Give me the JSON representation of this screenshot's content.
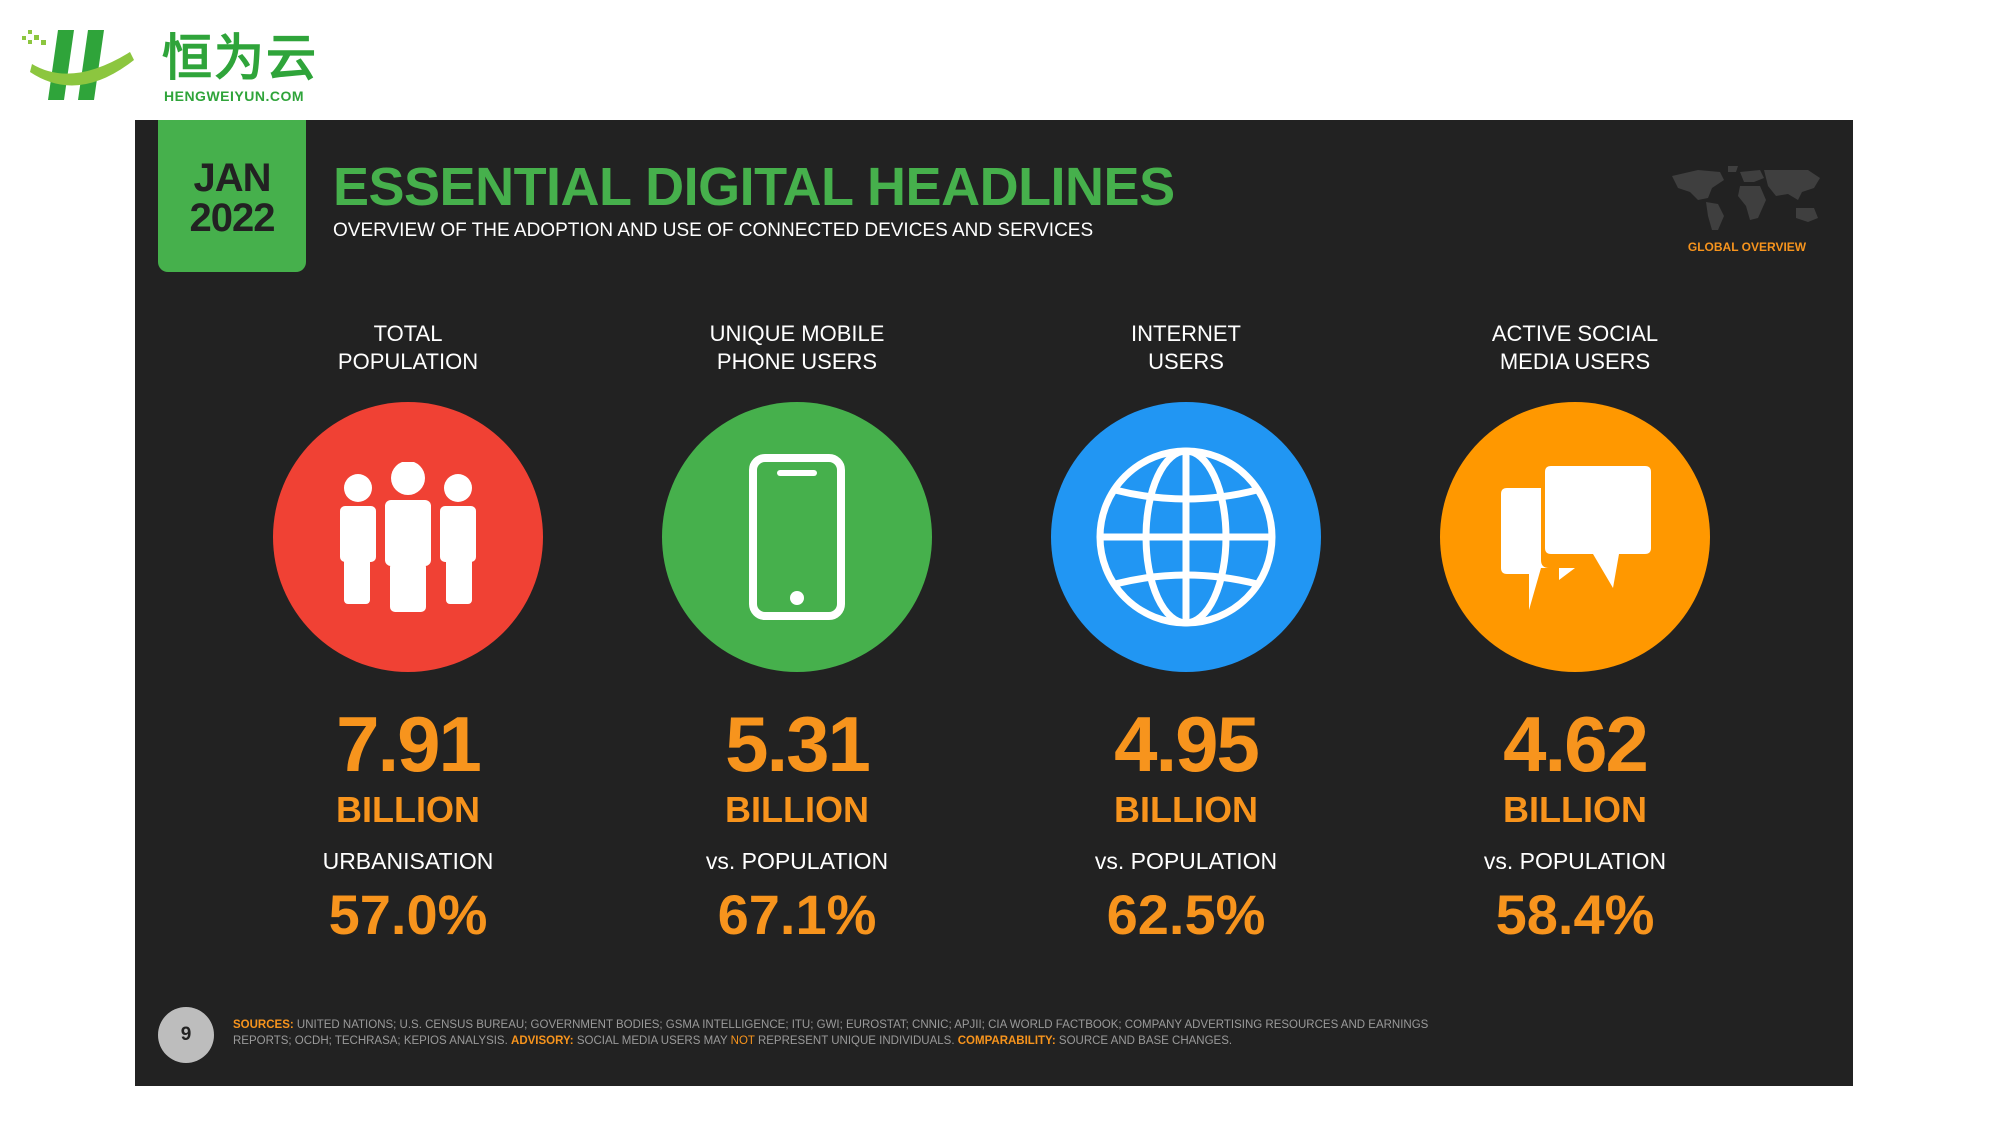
{
  "logo": {
    "name": "恒为云",
    "domain": "HENGWEIYUN.COM"
  },
  "header": {
    "month": "JAN",
    "year": "2022",
    "title": "ESSENTIAL DIGITAL HEADLINES",
    "subtitle": "OVERVIEW OF THE ADOPTION AND USE OF CONNECTED DEVICES AND SERVICES",
    "overview_label": "GLOBAL OVERVIEW"
  },
  "stats": [
    {
      "label_line1": "TOTAL",
      "label_line2": "POPULATION",
      "icon": "people-icon",
      "color": "#f04134",
      "value": "7.91",
      "unit": "BILLION",
      "sublabel": "URBANISATION",
      "percent": "57.0%"
    },
    {
      "label_line1": "UNIQUE MOBILE",
      "label_line2": "PHONE USERS",
      "icon": "mobile-phone-icon",
      "color": "#46b04c",
      "value": "5.31",
      "unit": "BILLION",
      "sublabel": "vs. POPULATION",
      "percent": "67.1%"
    },
    {
      "label_line1": "INTERNET",
      "label_line2": "USERS",
      "icon": "globe-icon",
      "color": "#2196f3",
      "value": "4.95",
      "unit": "BILLION",
      "sublabel": "vs. POPULATION",
      "percent": "62.5%"
    },
    {
      "label_line1": "ACTIVE SOCIAL",
      "label_line2": "MEDIA USERS",
      "icon": "chat-bubbles-icon",
      "color": "#ff9800",
      "value": "4.62",
      "unit": "BILLION",
      "sublabel": "vs. POPULATION",
      "percent": "58.4%"
    }
  ],
  "footer": {
    "page_number": "9",
    "sources_label": "SOURCES:",
    "sources_text": "UNITED NATIONS; U.S. CENSUS BUREAU; GOVERNMENT BODIES; GSMA INTELLIGENCE; ITU; GWI; EUROSTAT; CNNIC; APJII; CIA WORLD FACTBOOK; COMPANY ADVERTISING RESOURCES AND EARNINGS REPORTS; OCDH; TECHRASA; KEPIOS ANALYSIS.",
    "advisory_label": "ADVISORY:",
    "advisory_text_1": "SOCIAL MEDIA USERS MAY",
    "advisory_not": "NOT",
    "advisory_text_2": "REPRESENT UNIQUE INDIVIDUALS.",
    "comparability_label": "COMPARABILITY:",
    "comparability_text": "SOURCE AND BASE CHANGES."
  }
}
